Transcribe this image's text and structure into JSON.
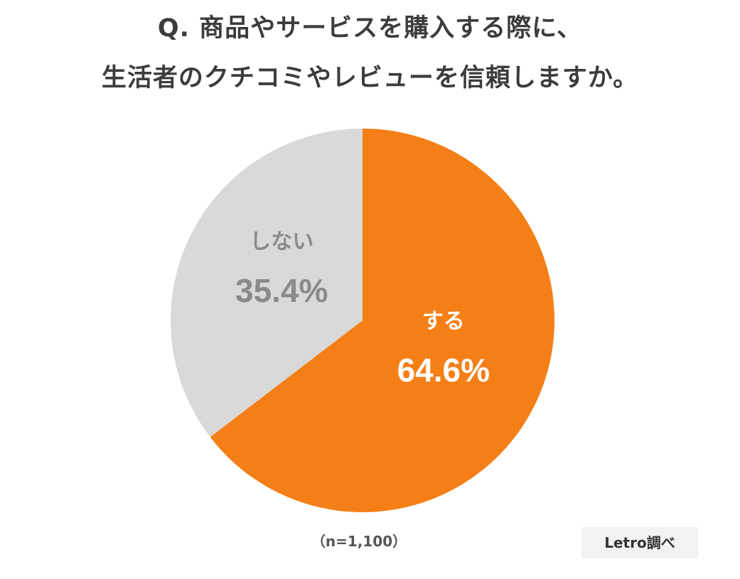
{
  "title": {
    "line1": "Q. 商品やサービスを購入する際に、",
    "line2": "生活者のクチコミやレビューを信頼しますか。"
  },
  "chart_data": {
    "type": "pie",
    "slices": [
      {
        "label": "する",
        "value": 64.6,
        "value_label": "64.6%",
        "color": "#f57f17",
        "text_color": "#ffffff"
      },
      {
        "label": "しない",
        "value": 35.4,
        "value_label": "35.4%",
        "color": "#d9d9d9",
        "text_color": "#8a8a8a"
      }
    ],
    "start": "12 o'clock",
    "direction": "clockwise"
  },
  "footnote": "（n=1,100）",
  "credit": "Letro調べ"
}
